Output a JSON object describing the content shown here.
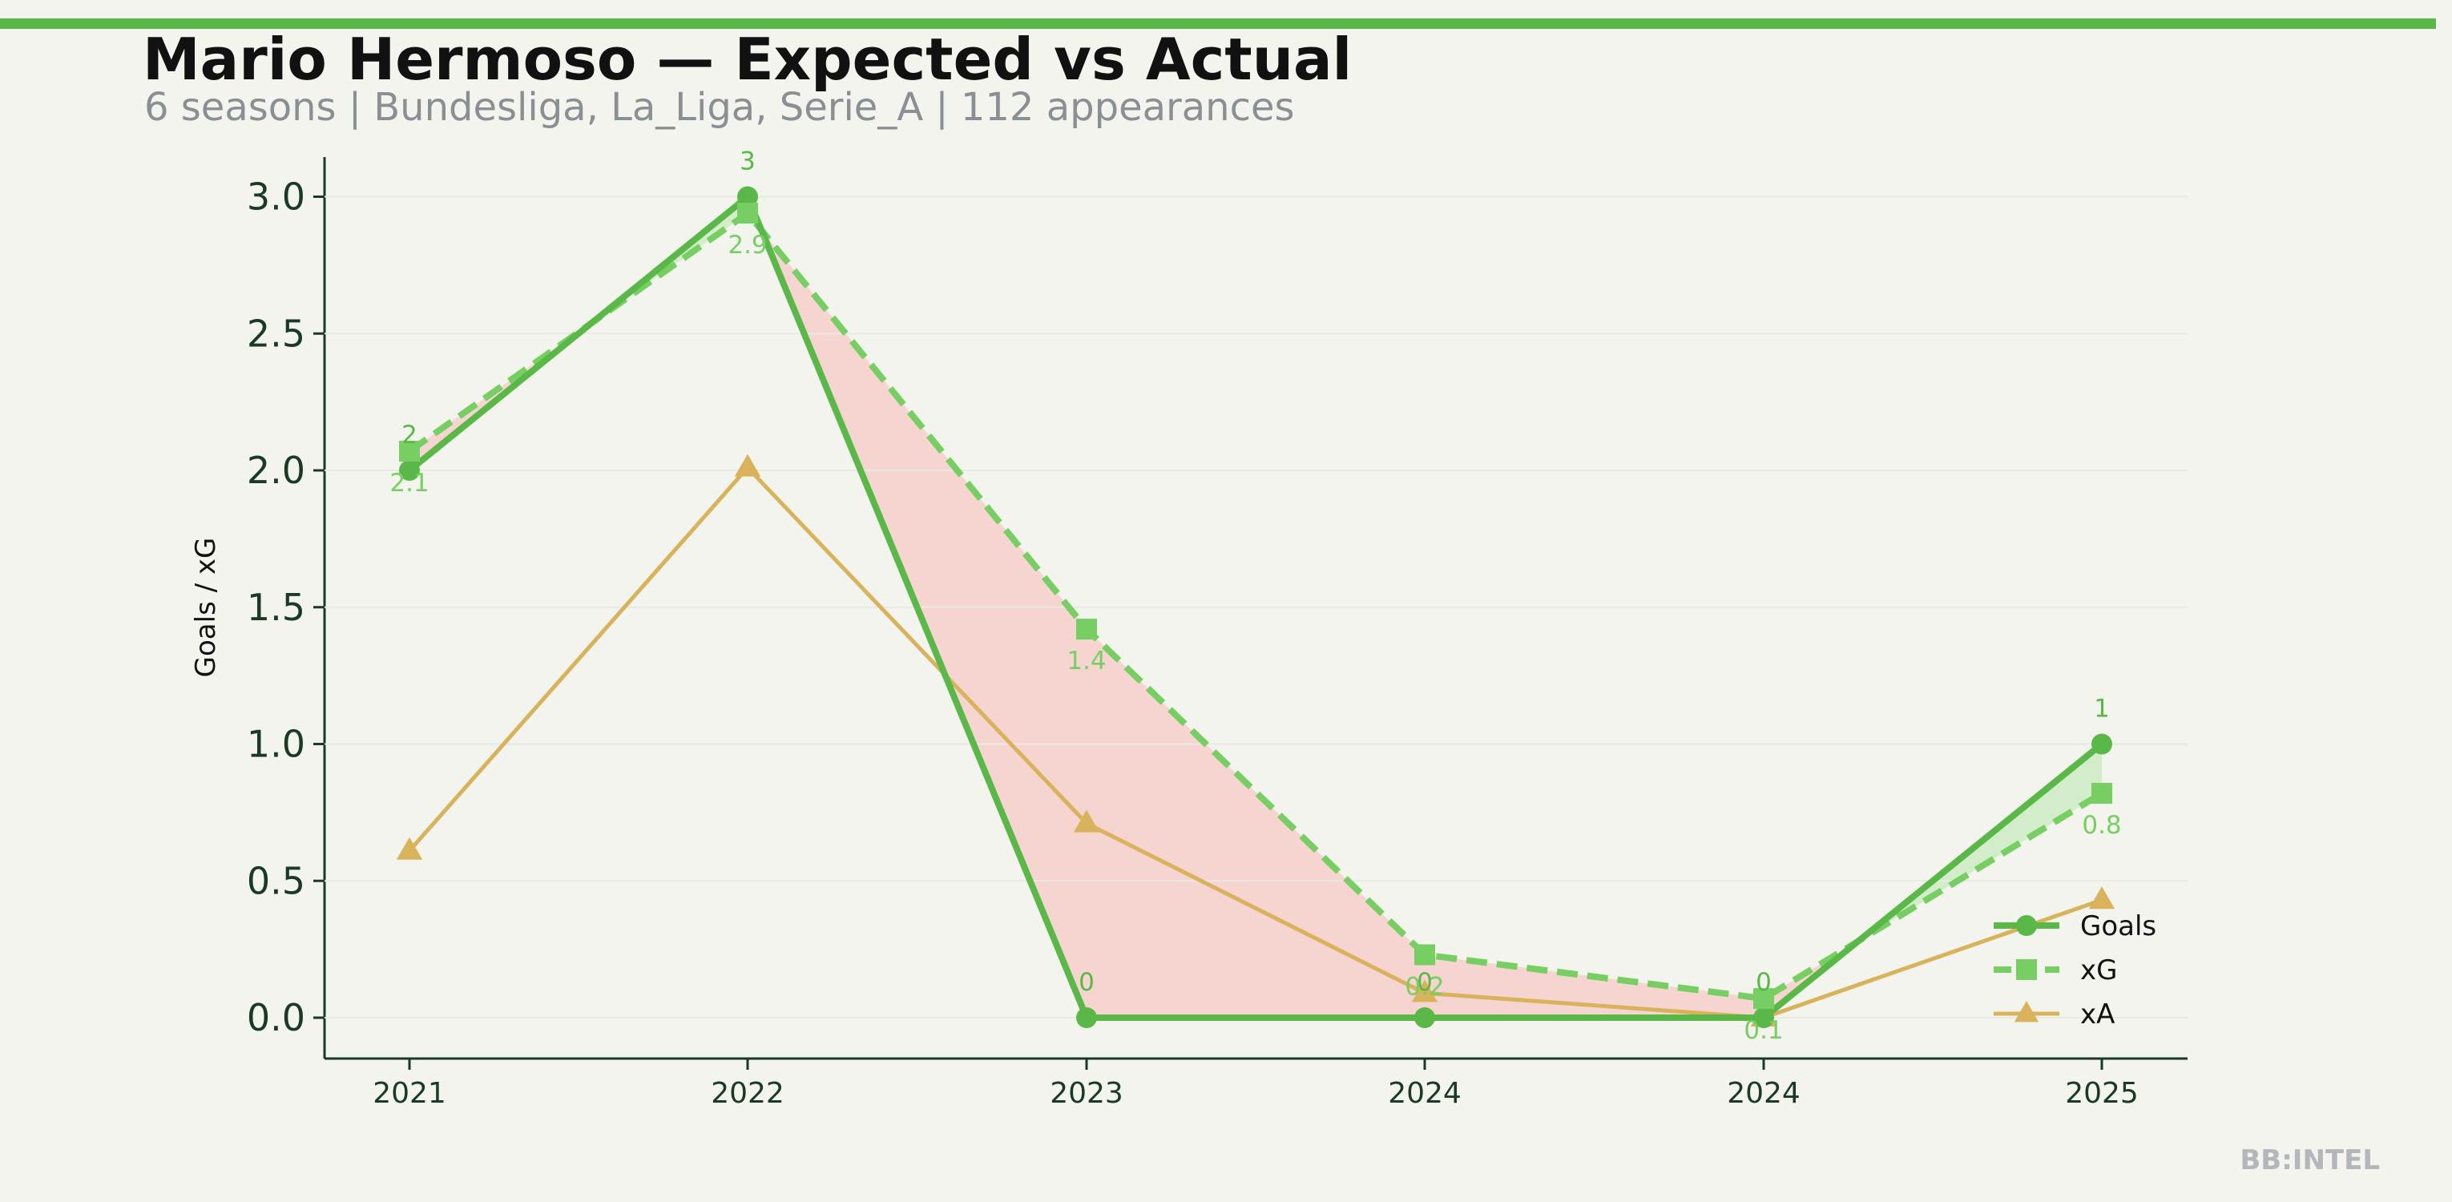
{
  "header": {
    "title": "Mario Hermoso — Expected vs Actual",
    "subtitle": "6 seasons | Bundesliga, La_Liga, Serie_A | 112 appearances"
  },
  "brand": "BB:INTEL",
  "colors": {
    "goals": "#59b848",
    "xg": "#77cf63",
    "xa": "#d9b25c",
    "underperform_fill": "#f6d5d1",
    "overperform_fill": "#d3ecc9",
    "axis": "#1a3a26"
  },
  "chart_data": {
    "type": "line",
    "categories": [
      "2021",
      "2022",
      "2023",
      "2024",
      "2024",
      "2025"
    ],
    "ylabel": "Goals / xG",
    "xlabel": "",
    "ylim": [
      -0.15,
      3.15
    ],
    "yticks": [
      "0.0",
      "0.5",
      "1.0",
      "1.5",
      "2.0",
      "2.5",
      "3.0"
    ],
    "legend_position": "lower-right",
    "series": [
      {
        "name": "Goals",
        "values": [
          2,
          3,
          0,
          0,
          0,
          1
        ],
        "labels": [
          "2",
          "3",
          "0",
          "0",
          "0",
          "1"
        ],
        "marker": "circle",
        "style": "solid"
      },
      {
        "name": "xG",
        "values": [
          2.07,
          2.94,
          1.42,
          0.23,
          0.07,
          0.82
        ],
        "labels": [
          "2.1",
          "2.9",
          "1.4",
          "0.2",
          "0.1",
          "0.8"
        ],
        "marker": "square",
        "style": "dashed"
      },
      {
        "name": "xA",
        "values": [
          0.61,
          2.01,
          0.71,
          0.09,
          0.0,
          0.43
        ],
        "marker": "triangle",
        "style": "solid"
      }
    ]
  }
}
